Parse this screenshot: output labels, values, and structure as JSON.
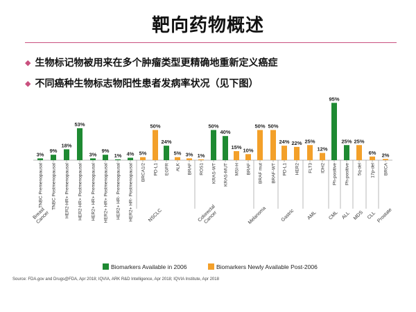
{
  "slide": {
    "title": "靶向药物概述",
    "bullets": [
      "生物标记物被用来在多个肿瘤类型更精确地重新定义癌症",
      "不同癌种生物标志物阳性患者发病率状况（见下图）"
    ],
    "source": "Source: FDA.gov and Drugs@FDA, Apr 2018; IQVIA, ARK R&D Intelligence, Apr 2018; IQVIA Institute, Apr 2018"
  },
  "colors": {
    "available_2006": "#1e8a32",
    "new_post_2006": "#f3a02a",
    "accent": "#c9507e"
  },
  "chart_data": {
    "type": "bar",
    "title": "",
    "xlabel": "",
    "ylabel": "",
    "ylim": [
      0,
      100
    ],
    "grid": false,
    "legend_position": "bottom",
    "legend": [
      {
        "key": "available_2006",
        "label": "Biomarkers Available in 2006"
      },
      {
        "key": "new_post_2006",
        "label": "Biomarkers Newly Available Post-2006"
      }
    ],
    "bars": [
      {
        "label": "TNBC Premenopausal",
        "value": 3,
        "display": "3%",
        "series": "available_2006",
        "group": "Breast Cancer"
      },
      {
        "label": "TNBC Postmenopausal",
        "value": 9,
        "display": "9%",
        "series": "available_2006",
        "group": "Breast Cancer"
      },
      {
        "label": "HER2-HR+ Premenopausal",
        "value": 18,
        "display": "18%",
        "series": "available_2006",
        "group": "Breast Cancer"
      },
      {
        "label": "HER2-HR+ Postmenopausal",
        "value": 53,
        "display": "53%",
        "series": "available_2006",
        "group": "Breast Cancer"
      },
      {
        "label": "HER2+ HR+ Premenopausal",
        "value": 3,
        "display": "3%",
        "series": "available_2006",
        "group": "Breast Cancer"
      },
      {
        "label": "HER2+ HR+ Postmenopausal",
        "value": 9,
        "display": "9%",
        "series": "available_2006",
        "group": "Breast Cancer"
      },
      {
        "label": "HER2+ HR- Premenopausal",
        "value": 1,
        "display": "1%",
        "series": "available_2006",
        "group": "Breast Cancer"
      },
      {
        "label": "HER2+ HR- Postmenopausal",
        "value": 4,
        "display": "4%",
        "series": "available_2006",
        "group": "Breast Cancer"
      },
      {
        "label": "BRCA1/2",
        "value": 5,
        "display": "5%",
        "series": "new_post_2006",
        "group": "Breast Cancer"
      },
      {
        "label": "PD-L1",
        "value": 50,
        "display": "50%",
        "series": "new_post_2006",
        "group": "NSCLC"
      },
      {
        "label": "EGFR",
        "value": 24,
        "display": "24%",
        "series": "available_2006",
        "group": "NSCLC"
      },
      {
        "label": "ALK",
        "value": 5,
        "display": "5%",
        "series": "new_post_2006",
        "group": "NSCLC"
      },
      {
        "label": "BRAF",
        "value": 3,
        "display": "3%",
        "series": "new_post_2006",
        "group": "NSCLC"
      },
      {
        "label": "ROS1",
        "value": 1,
        "display": "1%",
        "series": "new_post_2006",
        "group": "NSCLC"
      },
      {
        "label": "KRAS-WT",
        "value": 50,
        "display": "50%",
        "series": "available_2006",
        "group": "Colorectal Cancer"
      },
      {
        "label": "KRAS-MUT",
        "value": 40,
        "display": "40%",
        "series": "available_2006",
        "group": "Colorectal Cancer"
      },
      {
        "label": "MSI-H",
        "value": 15,
        "display": "15%",
        "series": "new_post_2006",
        "group": "Colorectal Cancer"
      },
      {
        "label": "BRAF",
        "value": 10,
        "display": "10%",
        "series": "new_post_2006",
        "group": "Colorectal Cancer"
      },
      {
        "label": "BRAF mut",
        "value": 50,
        "display": "50%",
        "series": "new_post_2006",
        "group": "Melanoma"
      },
      {
        "label": "BRAF-WT",
        "value": 50,
        "display": "50%",
        "series": "new_post_2006",
        "group": "Melanoma"
      },
      {
        "label": "PD-L1",
        "value": 24,
        "display": "24%",
        "series": "new_post_2006",
        "group": "Gastric"
      },
      {
        "label": "HER2",
        "value": 22,
        "display": "22%",
        "series": "new_post_2006",
        "group": "Gastric"
      },
      {
        "label": "FLT3",
        "value": 25,
        "display": "25%",
        "series": "new_post_2006",
        "group": "AML"
      },
      {
        "label": "IDH2",
        "value": 12,
        "display": "12%",
        "series": "new_post_2006",
        "group": "AML"
      },
      {
        "label": "Ph-positive",
        "value": 95,
        "display": "95%",
        "series": "available_2006",
        "group": "CML"
      },
      {
        "label": "Ph-positive",
        "value": 25,
        "display": "25%",
        "series": "available_2006",
        "group": "ALL"
      },
      {
        "label": "5q-del",
        "value": 25,
        "display": "25%",
        "series": "new_post_2006",
        "group": "MDS"
      },
      {
        "label": "17p-del",
        "value": 6,
        "display": "6%",
        "series": "new_post_2006",
        "group": "CLL"
      },
      {
        "label": "BRCA",
        "value": 2,
        "display": "2%",
        "series": "new_post_2006",
        "group": "Prostate"
      }
    ],
    "groups": [
      "Breast Cancer",
      "NSCLC",
      "Colorectal Cancer",
      "Melanoma",
      "Gastric",
      "AML",
      "CML",
      "ALL",
      "MDS",
      "CLL",
      "Prostate"
    ]
  }
}
